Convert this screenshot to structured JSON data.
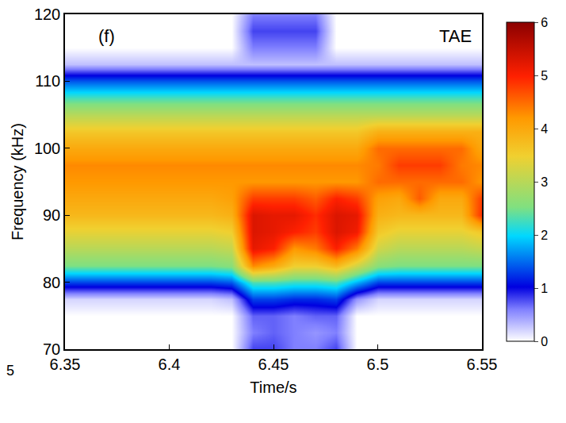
{
  "chart_data": {
    "type": "heatmap",
    "x_label": "Time/s",
    "y_label": "Frequency (kHz)",
    "annotations": [
      {
        "text": "(f)"
      },
      {
        "text": "TAE"
      },
      {
        "text": "5"
      }
    ],
    "x": [
      6.35,
      6.36,
      6.37,
      6.38,
      6.39,
      6.4,
      6.41,
      6.42,
      6.43,
      6.44,
      6.45,
      6.46,
      6.47,
      6.48,
      6.49,
      6.5,
      6.51,
      6.52,
      6.53,
      6.54,
      6.55
    ],
    "y": [
      70,
      72.5,
      75,
      77.5,
      80,
      82.5,
      85,
      87.5,
      90,
      92.5,
      95,
      97.5,
      100,
      102.5,
      105,
      107.5,
      110,
      112.5,
      115,
      117.5,
      120
    ],
    "z": [
      [
        0,
        0,
        0,
        0,
        0,
        0,
        0,
        0,
        0,
        0.8,
        0.8,
        0.6,
        0.6,
        0.8,
        0,
        0,
        0,
        0,
        0,
        0,
        0
      ],
      [
        0,
        0,
        0,
        0,
        0,
        0,
        0,
        0,
        0,
        0.6,
        0.7,
        0.6,
        0.5,
        0.6,
        0,
        0,
        0,
        0,
        0,
        0,
        0
      ],
      [
        0,
        0,
        0,
        0,
        0,
        0,
        0,
        0,
        0,
        0.7,
        0.7,
        0.6,
        0.7,
        0.7,
        0,
        0,
        0,
        0,
        0,
        0,
        0
      ],
      [
        0.2,
        0.2,
        0.2,
        0.2,
        0.2,
        0.2,
        0.2,
        0.2,
        0.3,
        1.3,
        1.3,
        1.2,
        1.2,
        1.3,
        0.5,
        0.2,
        0.2,
        0.2,
        0.2,
        0.2,
        0.2
      ],
      [
        1.3,
        1.3,
        1.3,
        1.3,
        1.3,
        1.3,
        1.3,
        1.3,
        1.4,
        2.3,
        2.3,
        2.2,
        2.2,
        2.3,
        1.8,
        1.3,
        1.3,
        1.3,
        1.3,
        1.3,
        1.3
      ],
      [
        2.5,
        2.5,
        2.5,
        2.5,
        2.5,
        2.5,
        2.5,
        2.5,
        2.6,
        4.3,
        4.0,
        3.5,
        3.5,
        3.8,
        3.2,
        2.6,
        2.5,
        2.5,
        2.5,
        2.5,
        2.5
      ],
      [
        3.0,
        3.0,
        3.0,
        3.0,
        3.0,
        3.0,
        3.0,
        3.0,
        3.1,
        5.2,
        5.0,
        4.2,
        4.4,
        5.0,
        4.4,
        3.2,
        3.0,
        3.0,
        3.0,
        3.0,
        3.1
      ],
      [
        3.4,
        3.4,
        3.4,
        3.4,
        3.4,
        3.4,
        3.4,
        3.4,
        3.5,
        5.3,
        5.2,
        5.0,
        4.8,
        5.3,
        5.1,
        3.6,
        3.4,
        3.4,
        3.4,
        3.4,
        3.6
      ],
      [
        3.8,
        3.8,
        3.8,
        3.8,
        3.8,
        3.8,
        3.8,
        3.8,
        3.9,
        5.3,
        5.2,
        5.2,
        4.9,
        5.3,
        5.2,
        3.9,
        3.8,
        3.8,
        3.8,
        3.8,
        4.9
      ],
      [
        4.0,
        4.0,
        4.0,
        4.0,
        4.0,
        4.0,
        4.0,
        4.0,
        4.1,
        4.8,
        4.8,
        4.8,
        4.6,
        5.0,
        4.8,
        4.1,
        4.0,
        4.6,
        4.0,
        4.0,
        4.8
      ],
      [
        4.2,
        4.2,
        4.2,
        4.2,
        4.2,
        4.2,
        4.2,
        4.2,
        4.2,
        4.2,
        4.2,
        4.2,
        4.2,
        4.2,
        4.2,
        4.5,
        4.5,
        4.5,
        4.5,
        4.5,
        4.2
      ],
      [
        4.3,
        4.3,
        4.3,
        4.3,
        4.3,
        4.3,
        4.3,
        4.3,
        4.3,
        4.3,
        4.3,
        4.3,
        4.3,
        4.3,
        4.3,
        4.4,
        4.8,
        4.8,
        4.8,
        4.4,
        4.3
      ],
      [
        4.0,
        4.0,
        4.0,
        4.0,
        4.0,
        4.0,
        4.0,
        4.0,
        4.0,
        4.0,
        4.0,
        4.0,
        4.0,
        4.0,
        4.0,
        4.5,
        4.5,
        4.5,
        4.5,
        4.5,
        4.0
      ],
      [
        3.6,
        3.6,
        3.6,
        3.6,
        3.6,
        3.6,
        3.6,
        3.6,
        3.6,
        3.6,
        3.6,
        3.6,
        3.6,
        3.6,
        3.6,
        3.9,
        3.9,
        3.9,
        3.9,
        3.9,
        3.9
      ],
      [
        3.0,
        3.0,
        3.0,
        3.0,
        3.0,
        3.0,
        3.0,
        3.0,
        3.0,
        3.0,
        3.0,
        3.0,
        3.0,
        3.0,
        3.0,
        3.0,
        3.0,
        3.0,
        3.0,
        3.0,
        3.0
      ],
      [
        2.3,
        2.3,
        2.3,
        2.3,
        2.3,
        2.3,
        2.3,
        2.3,
        2.3,
        2.3,
        2.3,
        2.3,
        2.3,
        2.3,
        2.3,
        2.3,
        2.3,
        2.3,
        2.3,
        2.3,
        2.3
      ],
      [
        1.4,
        1.4,
        1.4,
        1.4,
        1.4,
        1.4,
        1.4,
        1.4,
        1.4,
        1.4,
        1.4,
        1.4,
        1.4,
        1.4,
        1.4,
        1.4,
        1.4,
        1.4,
        1.4,
        1.4,
        1.4
      ],
      [
        0.3,
        0.3,
        0.3,
        0.3,
        0.3,
        0.3,
        0.3,
        0.3,
        0.3,
        0.3,
        0.3,
        0.3,
        0.3,
        0.3,
        0.3,
        0.3,
        0.3,
        0.3,
        0.3,
        0.3,
        0.3
      ],
      [
        0,
        0,
        0,
        0,
        0,
        0,
        0,
        0,
        0,
        0.6,
        0.6,
        0.6,
        0.6,
        0,
        0,
        0,
        0,
        0,
        0,
        0,
        0
      ],
      [
        0,
        0,
        0,
        0,
        0,
        0,
        0,
        0,
        0,
        0.8,
        0.8,
        0.8,
        0.8,
        0,
        0,
        0,
        0,
        0,
        0,
        0,
        0
      ],
      [
        0,
        0,
        0,
        0,
        0,
        0,
        0,
        0,
        0,
        0.6,
        0.6,
        0.6,
        0.6,
        0,
        0,
        0,
        0,
        0,
        0,
        0,
        0
      ]
    ],
    "xlim": [
      6.35,
      6.55
    ],
    "xticks": [
      6.35,
      6.4,
      6.45,
      6.5,
      6.55
    ],
    "ylim": [
      70,
      120
    ],
    "yticks": [
      70,
      80,
      90,
      100,
      110,
      120
    ],
    "colorbar": {
      "range": [
        0,
        6
      ],
      "ticks": [
        0,
        1,
        2,
        3,
        4,
        5,
        6
      ]
    }
  }
}
